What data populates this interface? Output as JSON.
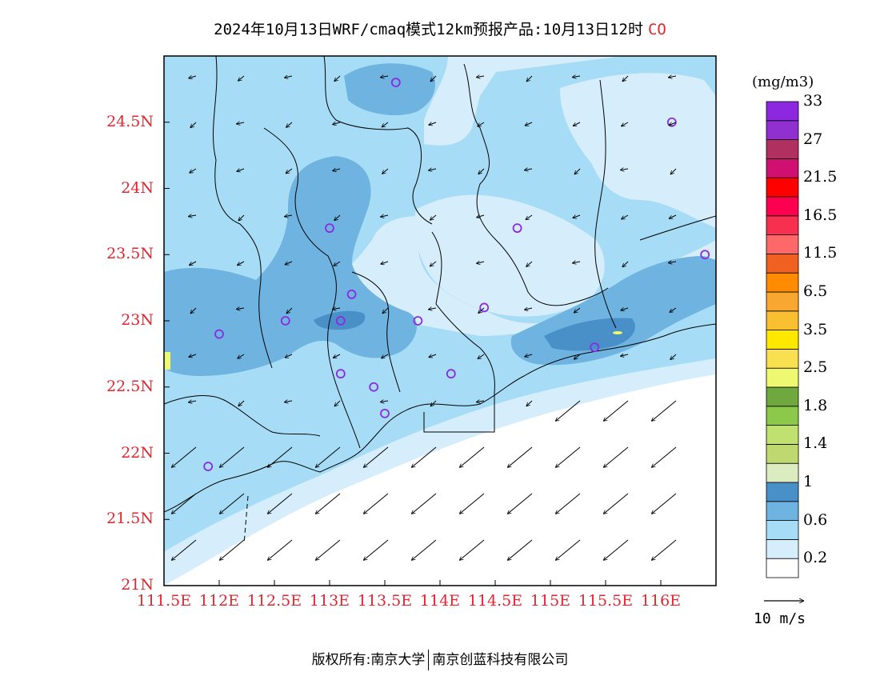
{
  "title": {
    "main": "2024年10月13日WRF/cmaq模式12km预报产品:10月13日12时",
    "species": "CO"
  },
  "map": {
    "lat_labels": [
      "24.5N",
      "24N",
      "23.5N",
      "23N",
      "22.5N",
      "22N",
      "21.5N",
      "21N"
    ],
    "lon_labels": [
      "111.5E",
      "112E",
      "112.5E",
      "113E",
      "113.5E",
      "114E",
      "114.5E",
      "115E",
      "115.5E",
      "116E"
    ],
    "lat_range": [
      21.0,
      25.0
    ],
    "lon_range": [
      111.5,
      116.5
    ],
    "field_colors": {
      "land_base": "#a6dcf5",
      "low": "#d6eefb",
      "mid": "#6fb3e0",
      "high": "#4a90c8",
      "sea": "#ffffff",
      "boundary": "#000000",
      "station_marker": "#8a2be2"
    },
    "stations": [
      {
        "lon": 113.6,
        "lat": 24.8
      },
      {
        "lon": 116.1,
        "lat": 24.5
      },
      {
        "lon": 113.0,
        "lat": 23.7
      },
      {
        "lon": 114.7,
        "lat": 23.7
      },
      {
        "lon": 116.4,
        "lat": 23.5
      },
      {
        "lon": 113.2,
        "lat": 23.2
      },
      {
        "lon": 112.6,
        "lat": 23.0
      },
      {
        "lon": 113.1,
        "lat": 23.0
      },
      {
        "lon": 113.8,
        "lat": 23.0
      },
      {
        "lon": 114.4,
        "lat": 23.1
      },
      {
        "lon": 112.0,
        "lat": 22.9
      },
      {
        "lon": 115.4,
        "lat": 22.8
      },
      {
        "lon": 113.1,
        "lat": 22.6
      },
      {
        "lon": 113.4,
        "lat": 22.5
      },
      {
        "lon": 114.1,
        "lat": 22.6
      },
      {
        "lon": 113.5,
        "lat": 22.3
      },
      {
        "lon": 111.9,
        "lat": 21.9
      }
    ]
  },
  "colorbar": {
    "units": "(mg/m3)",
    "colors": [
      "#ffffff",
      "#d6eefb",
      "#a6dcf5",
      "#6fb3e0",
      "#4a90c8",
      "#dcebc0",
      "#c0d870",
      "#c0e070",
      "#8cc84a",
      "#70a840",
      "#eef870",
      "#f8e050",
      "#ffe800",
      "#f8c030",
      "#f8a830",
      "#ff8c00",
      "#f06020",
      "#ff6868",
      "#f83050",
      "#ff0050",
      "#ff0000",
      "#d01070",
      "#b03060",
      "#9030d0",
      "#8c28e0"
    ],
    "labels": [
      "0.2",
      "0.6",
      "1",
      "1.4",
      "1.8",
      "2.5",
      "3.5",
      "6.5",
      "11.5",
      "16.5",
      "21.5",
      "27",
      "33"
    ]
  },
  "wind": {
    "reference_label": "10 m/s"
  },
  "footer": {
    "left": "版权所有:南京大学",
    "right": "南京创蓝科技有限公司"
  }
}
